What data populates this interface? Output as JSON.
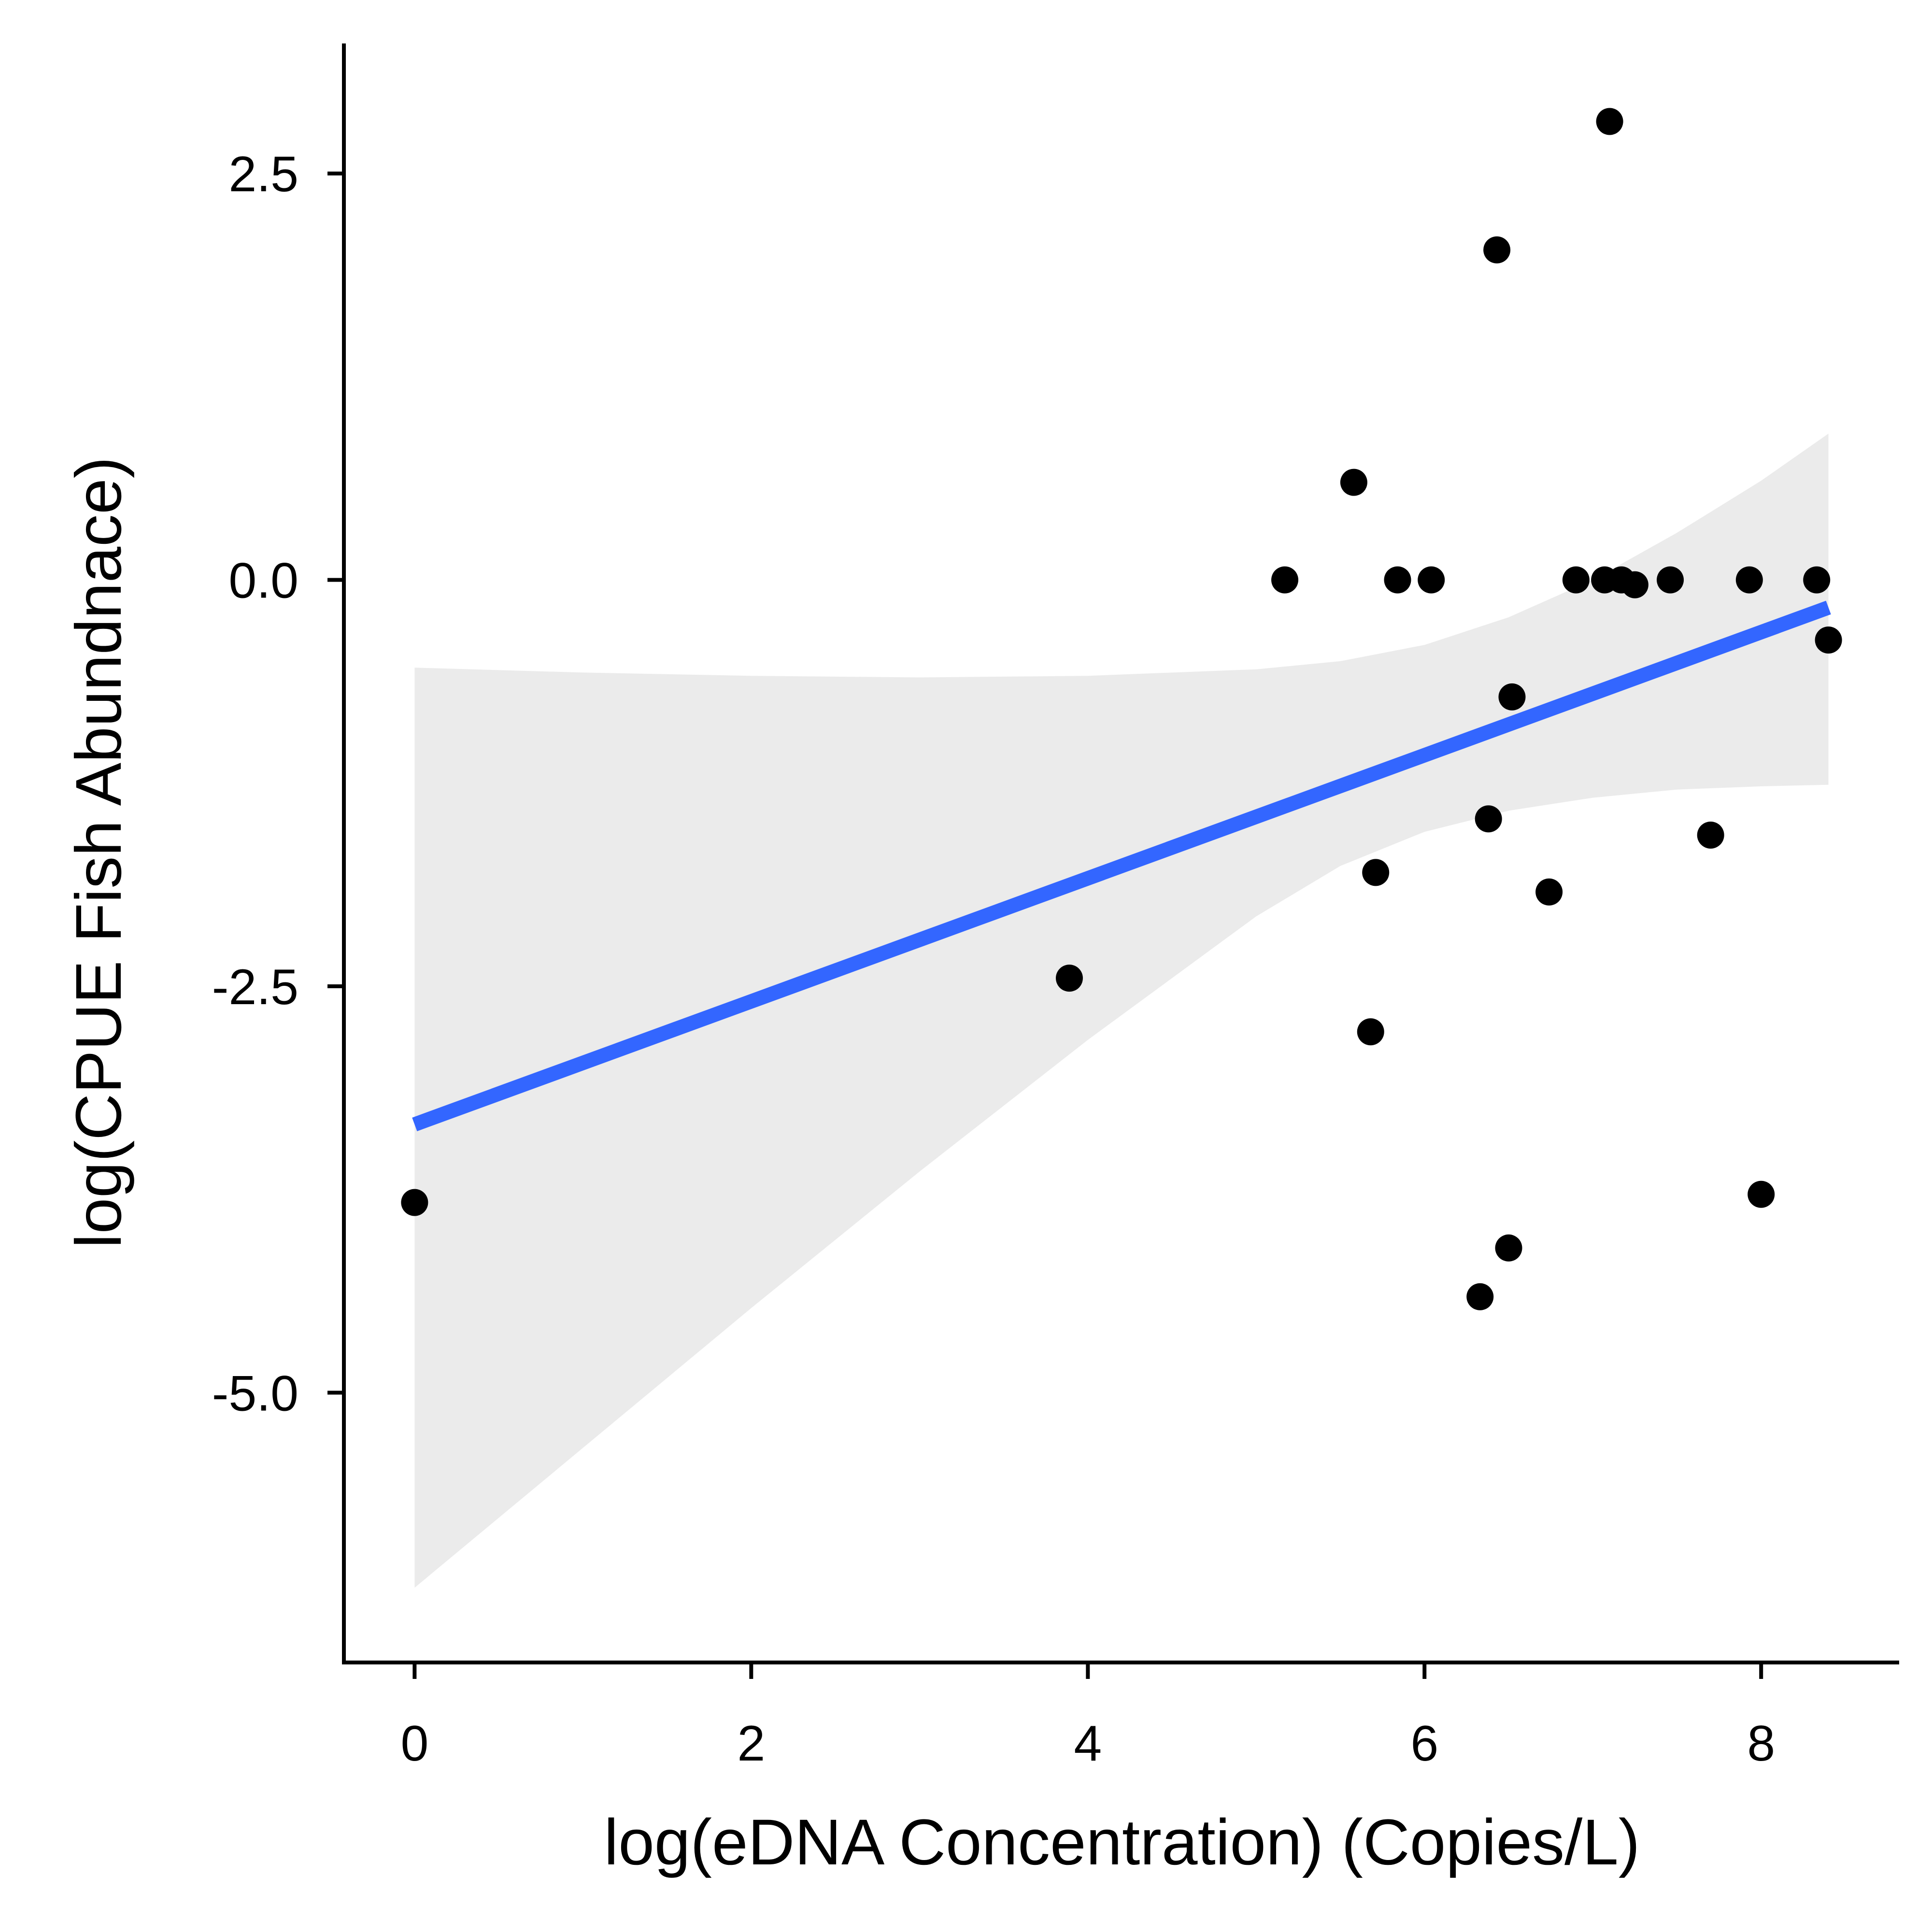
{
  "chart_data": {
    "type": "scatter",
    "xlabel": "log(eDNA Concentration) (Copies/L)",
    "ylabel": "log(CPUE Fish Abundnace)",
    "xlim": [
      -0.42,
      8.82
    ],
    "ylim": [
      -6.66,
      3.3
    ],
    "x_ticks": [
      0,
      2,
      4,
      6,
      8
    ],
    "x_tick_labels": [
      "0",
      "2",
      "4",
      "6",
      "8"
    ],
    "y_ticks": [
      2.5,
      0,
      -2.5,
      -5
    ],
    "y_tick_labels": [
      "2.5",
      "0.0",
      "-2.5",
      "-5.0"
    ],
    "grid": false,
    "points": [
      {
        "x": 0.0,
        "y": -3.83
      },
      {
        "x": 3.89,
        "y": -2.45
      },
      {
        "x": 5.17,
        "y": 0.0
      },
      {
        "x": 5.58,
        "y": 0.6
      },
      {
        "x": 5.68,
        "y": -2.78
      },
      {
        "x": 5.71,
        "y": -1.8
      },
      {
        "x": 5.84,
        "y": 0.0
      },
      {
        "x": 6.04,
        "y": 0.0
      },
      {
        "x": 6.33,
        "y": -4.41
      },
      {
        "x": 6.38,
        "y": -1.47
      },
      {
        "x": 6.43,
        "y": 2.03
      },
      {
        "x": 6.5,
        "y": -4.11
      },
      {
        "x": 6.52,
        "y": -0.72
      },
      {
        "x": 6.74,
        "y": -1.92
      },
      {
        "x": 6.9,
        "y": 0.0
      },
      {
        "x": 7.07,
        "y": 0.0
      },
      {
        "x": 7.1,
        "y": 2.82
      },
      {
        "x": 7.17,
        "y": 0.0
      },
      {
        "x": 7.25,
        "y": -0.03
      },
      {
        "x": 7.46,
        "y": 0.0
      },
      {
        "x": 7.7,
        "y": -1.57
      },
      {
        "x": 7.93,
        "y": 0.0
      },
      {
        "x": 8.0,
        "y": -3.78
      },
      {
        "x": 8.33,
        "y": 0.0
      },
      {
        "x": 8.4,
        "y": -0.37
      }
    ],
    "fit_line": {
      "x": [
        0.0,
        8.4
      ],
      "y": [
        -3.35,
        -0.17
      ]
    },
    "confidence_band": {
      "x": [
        0.0,
        1.0,
        2.0,
        3.0,
        4.0,
        5.0,
        5.5,
        6.0,
        6.5,
        7.0,
        7.5,
        8.0,
        8.4
      ],
      "upper": [
        -0.54,
        -0.57,
        -0.59,
        -0.6,
        -0.59,
        -0.55,
        -0.5,
        -0.4,
        -0.23,
        0.0,
        0.29,
        0.61,
        0.9
      ],
      "lower": [
        -6.2,
        -5.34,
        -4.48,
        -3.64,
        -2.83,
        -2.07,
        -1.76,
        -1.55,
        -1.42,
        -1.34,
        -1.29,
        -1.27,
        -1.26
      ]
    },
    "colors": {
      "points": "#000000",
      "fit_line": "#3366FF",
      "confidence_band": "#EBEBEB",
      "axes": "#000000"
    }
  }
}
